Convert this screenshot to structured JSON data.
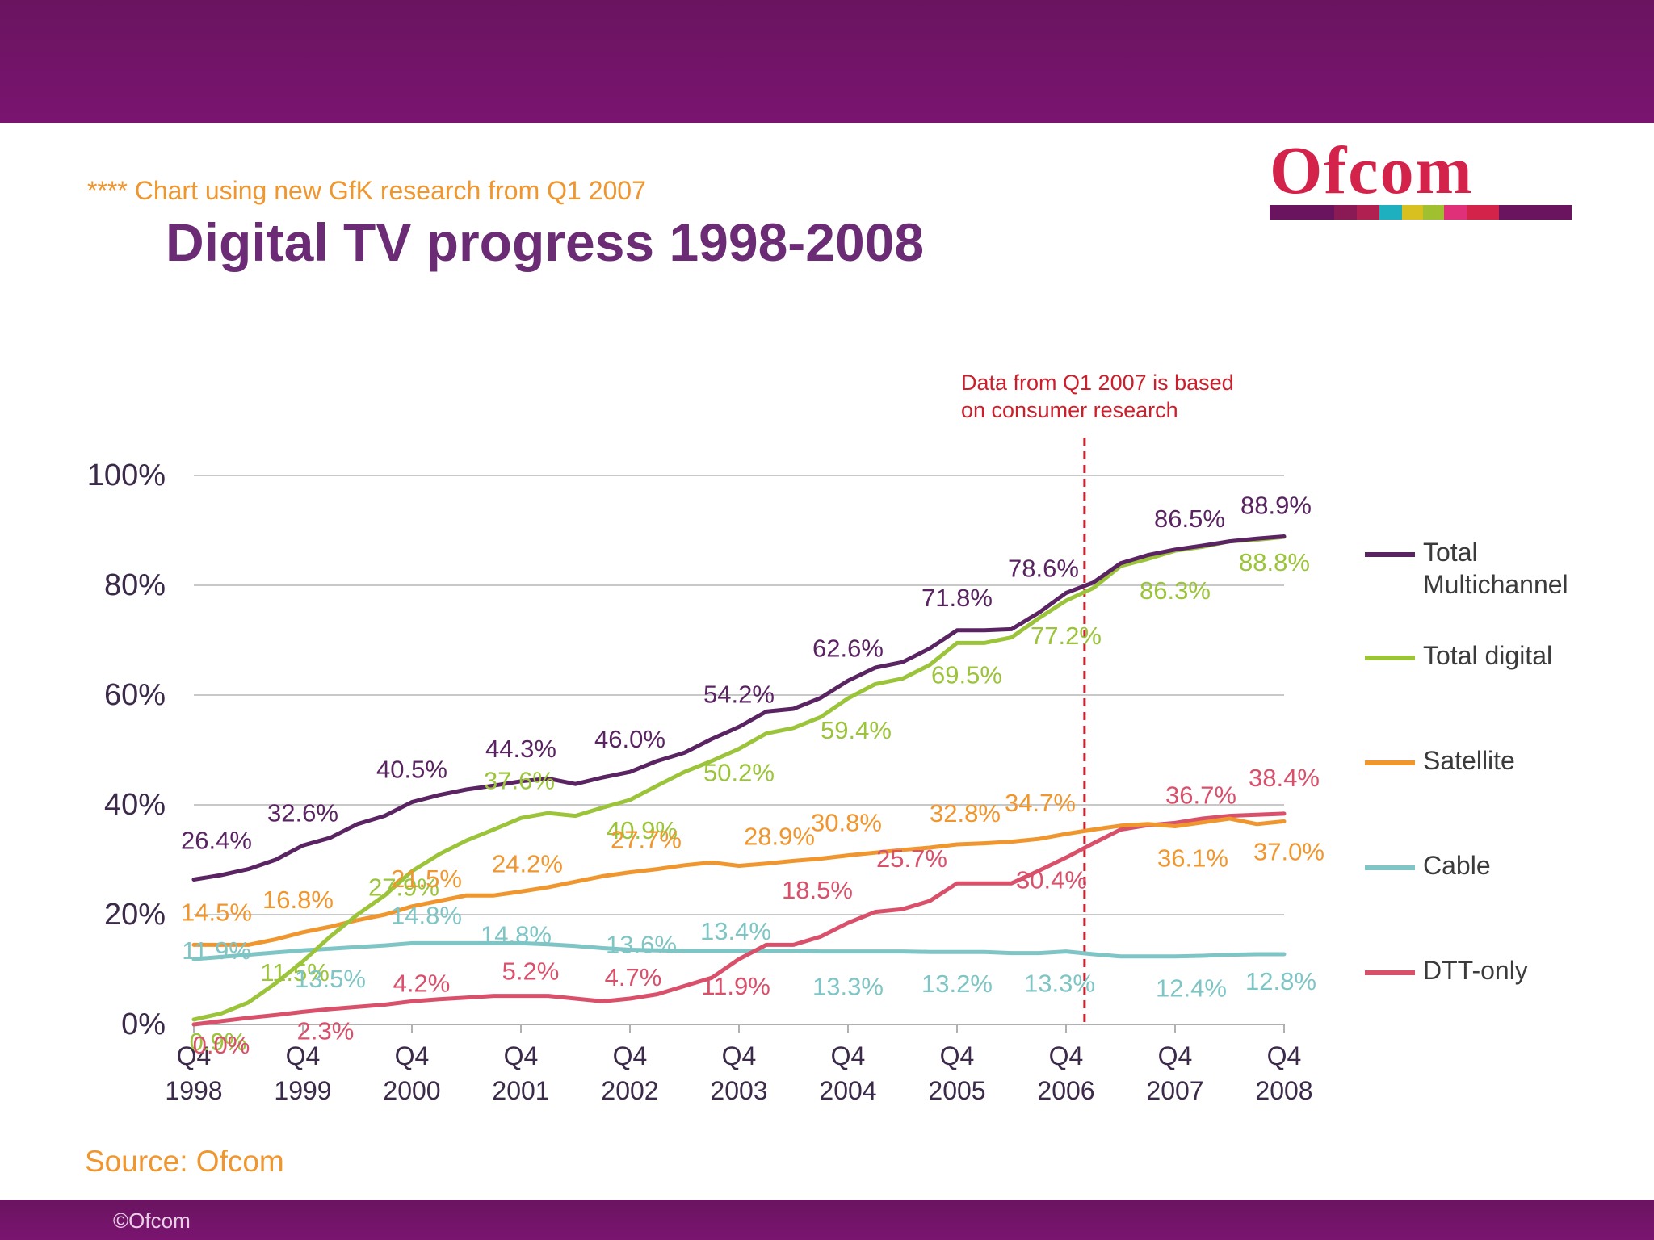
{
  "header": {
    "note": "**** Chart using new GfK research from Q1 2007",
    "title": "Digital TV progress 1998-2008"
  },
  "logo": {
    "text": "Ofcom",
    "stripe_colors": [
      "#6a1460",
      "#8a1a55",
      "#b02050",
      "#1fb0c0",
      "#d8c020",
      "#a0c030",
      "#e0307a",
      "#d4234b",
      "#6a1460"
    ]
  },
  "footer": {
    "source": "Source: Ofcom",
    "copyright": "©Ofcom"
  },
  "chart_data": {
    "type": "line",
    "title": "Digital TV progress 1998-2008",
    "x": [
      "Q4 1998",
      "Q1 1999",
      "Q2 1999",
      "Q3 1999",
      "Q4 1999",
      "Q1 2000",
      "Q2 2000",
      "Q3 2000",
      "Q4 2000",
      "Q1 2001",
      "Q2 2001",
      "Q3 2001",
      "Q4 2001",
      "Q1 2002",
      "Q2 2002",
      "Q3 2002",
      "Q4 2002",
      "Q1 2003",
      "Q2 2003",
      "Q3 2003",
      "Q4 2003",
      "Q1 2004",
      "Q2 2004",
      "Q3 2004",
      "Q4 2004",
      "Q1 2005",
      "Q2 2005",
      "Q3 2005",
      "Q4 2005",
      "Q1 2006",
      "Q2 2006",
      "Q3 2006",
      "Q4 2006",
      "Q1 2007",
      "Q2 2007",
      "Q3 2007",
      "Q4 2007",
      "Q1 2008",
      "Q2 2008",
      "Q3 2008",
      "Q4 2008"
    ],
    "x_tick_labels": [
      {
        "line1": "Q4",
        "line2": "1998",
        "index": 0
      },
      {
        "line1": "Q4",
        "line2": "1999",
        "index": 4
      },
      {
        "line1": "Q4",
        "line2": "2000",
        "index": 8
      },
      {
        "line1": "Q4",
        "line2": "2001",
        "index": 12
      },
      {
        "line1": "Q4",
        "line2": "2002",
        "index": 16
      },
      {
        "line1": "Q4",
        "line2": "2003",
        "index": 20
      },
      {
        "line1": "Q4",
        "line2": "2004",
        "index": 24
      },
      {
        "line1": "Q4",
        "line2": "2005",
        "index": 28
      },
      {
        "line1": "Q4",
        "line2": "2006",
        "index": 32
      },
      {
        "line1": "Q4",
        "line2": "2007",
        "index": 36
      },
      {
        "line1": "Q4",
        "line2": "2008",
        "index": 40
      }
    ],
    "y_ticks": [
      "0%",
      "20%",
      "40%",
      "60%",
      "80%",
      "100%"
    ],
    "ylim": [
      0,
      100
    ],
    "grid": true,
    "legend_position": "right",
    "series": [
      {
        "name": "Total Multichannel",
        "color": "#5a2463",
        "values": [
          26.4,
          27.2,
          28.3,
          30.0,
          32.6,
          34.0,
          36.5,
          38.0,
          40.5,
          41.8,
          42.8,
          43.5,
          44.3,
          44.8,
          43.8,
          45.0,
          46.0,
          48.0,
          49.5,
          52.0,
          54.2,
          57.0,
          57.5,
          59.5,
          62.6,
          65.0,
          66.0,
          68.5,
          71.8,
          71.8,
          72.0,
          75.0,
          78.6,
          80.5,
          84.0,
          85.5,
          86.5,
          87.2,
          88.0,
          88.5,
          88.9
        ]
      },
      {
        "name": "Total digital",
        "color": "#9bc43a",
        "values": [
          0.9,
          2.0,
          4.0,
          7.5,
          11.5,
          16.0,
          20.0,
          23.5,
          27.9,
          31.0,
          33.5,
          35.5,
          37.6,
          38.5,
          38.0,
          39.5,
          40.9,
          43.5,
          46.0,
          48.0,
          50.2,
          53.0,
          54.0,
          56.0,
          59.4,
          62.0,
          63.0,
          65.5,
          69.5,
          69.5,
          70.5,
          74.0,
          77.2,
          79.5,
          83.5,
          84.8,
          86.3,
          87.0,
          88.0,
          88.3,
          88.8
        ]
      },
      {
        "name": "Satellite",
        "color": "#f0962e",
        "values": [
          14.5,
          14.5,
          14.5,
          15.5,
          16.8,
          17.8,
          19.0,
          20.0,
          21.5,
          22.5,
          23.5,
          23.5,
          24.2,
          25.0,
          26.0,
          27.0,
          27.7,
          28.3,
          29.0,
          29.5,
          28.9,
          29.3,
          29.8,
          30.2,
          30.8,
          31.3,
          31.8,
          32.2,
          32.8,
          33.0,
          33.3,
          33.8,
          34.7,
          35.5,
          36.2,
          36.5,
          36.1,
          36.8,
          37.5,
          36.5,
          37.0
        ]
      },
      {
        "name": "Cable",
        "color": "#7fc5c5",
        "values": [
          11.9,
          12.3,
          12.7,
          13.1,
          13.5,
          13.8,
          14.1,
          14.4,
          14.8,
          14.8,
          14.8,
          14.8,
          14.8,
          14.6,
          14.3,
          13.9,
          13.6,
          13.5,
          13.4,
          13.4,
          13.4,
          13.4,
          13.4,
          13.3,
          13.3,
          13.3,
          13.3,
          13.2,
          13.2,
          13.2,
          13.0,
          13.0,
          13.3,
          12.8,
          12.4,
          12.4,
          12.4,
          12.5,
          12.7,
          12.8,
          12.8
        ]
      },
      {
        "name": "DTT-only",
        "color": "#d9506b",
        "values": [
          0.0,
          0.6,
          1.2,
          1.7,
          2.3,
          2.8,
          3.2,
          3.6,
          4.2,
          4.6,
          4.9,
          5.2,
          5.2,
          5.2,
          4.7,
          4.2,
          4.7,
          5.5,
          7.0,
          8.5,
          11.9,
          14.5,
          14.5,
          16.0,
          18.5,
          20.5,
          21.0,
          22.5,
          25.7,
          25.7,
          25.7,
          28.0,
          30.4,
          33.0,
          35.5,
          36.3,
          36.7,
          37.5,
          38.0,
          38.2,
          38.4
        ]
      }
    ],
    "data_labels": [
      {
        "series": 0,
        "index": 0,
        "text": "26.4%"
      },
      {
        "series": 0,
        "index": 4,
        "text": "32.6%"
      },
      {
        "series": 0,
        "index": 8,
        "text": "40.5%"
      },
      {
        "series": 0,
        "index": 12,
        "text": "44.3%"
      },
      {
        "series": 0,
        "index": 16,
        "text": "46.0%"
      },
      {
        "series": 0,
        "index": 20,
        "text": "54.2%"
      },
      {
        "series": 0,
        "index": 24,
        "text": "62.6%"
      },
      {
        "series": 0,
        "index": 28,
        "text": "71.8%"
      },
      {
        "series": 0,
        "index": 32,
        "text": "78.6%"
      },
      {
        "series": 0,
        "index": 36,
        "text": "86.5%"
      },
      {
        "series": 0,
        "index": 40,
        "text": "88.9%"
      },
      {
        "series": 1,
        "index": 0,
        "text": "0.9%"
      },
      {
        "series": 1,
        "index": 4,
        "text": "11.5%"
      },
      {
        "series": 1,
        "index": 8,
        "text": "27.9%"
      },
      {
        "series": 1,
        "index": 12,
        "text": "37.6%"
      },
      {
        "series": 1,
        "index": 16,
        "text": "40.9%"
      },
      {
        "series": 1,
        "index": 20,
        "text": "50.2%"
      },
      {
        "series": 1,
        "index": 24,
        "text": "59.4%"
      },
      {
        "series": 1,
        "index": 28,
        "text": "69.5%"
      },
      {
        "series": 1,
        "index": 32,
        "text": "77.2%"
      },
      {
        "series": 1,
        "index": 36,
        "text": "86.3%"
      },
      {
        "series": 1,
        "index": 40,
        "text": "88.8%"
      },
      {
        "series": 2,
        "index": 0,
        "text": "14.5%"
      },
      {
        "series": 2,
        "index": 4,
        "text": "16.8%"
      },
      {
        "series": 2,
        "index": 8,
        "text": "21.5%"
      },
      {
        "series": 2,
        "index": 12,
        "text": "24.2%"
      },
      {
        "series": 2,
        "index": 16,
        "text": "27.7%"
      },
      {
        "series": 2,
        "index": 20,
        "text": "28.9%"
      },
      {
        "series": 2,
        "index": 24,
        "text": "30.8%"
      },
      {
        "series": 2,
        "index": 28,
        "text": "32.8%"
      },
      {
        "series": 2,
        "index": 32,
        "text": "34.7%"
      },
      {
        "series": 2,
        "index": 36,
        "text": "36.1%"
      },
      {
        "series": 2,
        "index": 40,
        "text": "37.0%"
      },
      {
        "series": 3,
        "index": 0,
        "text": "11.9%"
      },
      {
        "series": 3,
        "index": 4,
        "text": "13.5%"
      },
      {
        "series": 3,
        "index": 8,
        "text": "14.8%"
      },
      {
        "series": 3,
        "index": 12,
        "text": "14.8%"
      },
      {
        "series": 3,
        "index": 16,
        "text": "13.6%"
      },
      {
        "series": 3,
        "index": 20,
        "text": "13.4%"
      },
      {
        "series": 3,
        "index": 24,
        "text": "13.3%"
      },
      {
        "series": 3,
        "index": 28,
        "text": "13.2%"
      },
      {
        "series": 3,
        "index": 32,
        "text": "13.3%"
      },
      {
        "series": 3,
        "index": 36,
        "text": "12.4%"
      },
      {
        "series": 3,
        "index": 40,
        "text": "12.8%"
      },
      {
        "series": 4,
        "index": 0,
        "text": "0.0%"
      },
      {
        "series": 4,
        "index": 4,
        "text": "2.3%"
      },
      {
        "series": 4,
        "index": 8,
        "text": "4.2%"
      },
      {
        "series": 4,
        "index": 12,
        "text": "5.2%"
      },
      {
        "series": 4,
        "index": 16,
        "text": "4.7%"
      },
      {
        "series": 4,
        "index": 20,
        "text": "11.9%"
      },
      {
        "series": 4,
        "index": 24,
        "text": "18.5%"
      },
      {
        "series": 4,
        "index": 28,
        "text": "25.7%"
      },
      {
        "series": 4,
        "index": 32,
        "text": "30.4%"
      },
      {
        "series": 4,
        "index": 36,
        "text": "36.7%"
      },
      {
        "series": 4,
        "index": 40,
        "text": "38.4%"
      }
    ],
    "annotation": {
      "line1": "Data from Q1 2007 is based",
      "line2": "on consumer research",
      "color": "#cc1f2b",
      "at": "between Q4 2006 and Q1 2007"
    },
    "legend": [
      {
        "line1": "Total",
        "line2": "Multichannel",
        "series": 0
      },
      {
        "line1": "Total digital",
        "series": 1
      },
      {
        "line1": "Satellite",
        "series": 2
      },
      {
        "line1": "Cable",
        "series": 3
      },
      {
        "line1": "DTT-only",
        "series": 4
      }
    ]
  }
}
